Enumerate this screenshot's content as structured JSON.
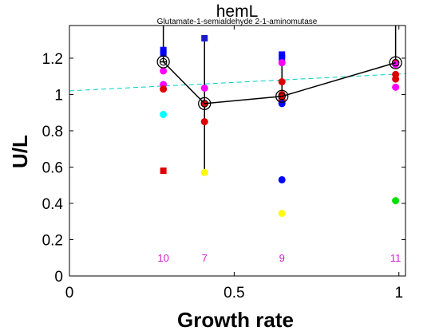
{
  "chart_data": {
    "type": "scatter",
    "title": "hemL",
    "subtitle": "Glutamate-1-semialdehyde 2-1-aminomutase",
    "xlabel": "Growth rate",
    "ylabel": "U/L",
    "xlim": [
      0,
      1.02
    ],
    "ylim": [
      0,
      1.38
    ],
    "x_ticks": [
      0,
      0.5,
      1
    ],
    "x_tick_labels": [
      "0",
      "0.5",
      "1"
    ],
    "y_ticks": [
      0,
      0.2,
      0.4,
      0.6,
      0.8,
      1,
      1.2
    ],
    "y_tick_labels": [
      "0",
      "0.2",
      "0.4",
      "0.6",
      "0.8",
      "1",
      "1.2"
    ],
    "grid": false,
    "colors": {
      "blue": "#0000ff",
      "navy_blue": "#1a1acc",
      "magenta": "#ff00ff",
      "red": "#dd0000",
      "cyan": "#00ffff",
      "yellow": "#ffff00",
      "green": "#00dd00",
      "mean_line": "#000000",
      "trend_line": "#00cccc",
      "count_text": "#d21ed2"
    },
    "mean_series": {
      "x": [
        0.285,
        0.41,
        0.645,
        0.99
      ],
      "y": [
        1.18,
        0.95,
        0.99,
        1.175
      ],
      "err_low": [
        1.18,
        0.57,
        0.99,
        1.175
      ],
      "err_high": [
        1.38,
        1.31,
        1.22,
        1.38
      ]
    },
    "trend_line": {
      "x": [
        0,
        1.02
      ],
      "y": [
        1.02,
        1.115
      ]
    },
    "points": [
      {
        "x": 0.285,
        "y": 1.245,
        "color": "blue",
        "shape": "square"
      },
      {
        "x": 0.285,
        "y": 1.225,
        "color": "blue",
        "shape": "square"
      },
      {
        "x": 0.285,
        "y": 1.13,
        "color": "magenta",
        "shape": "circle"
      },
      {
        "x": 0.285,
        "y": 1.055,
        "color": "magenta",
        "shape": "circle"
      },
      {
        "x": 0.285,
        "y": 1.03,
        "color": "red",
        "shape": "circle"
      },
      {
        "x": 0.285,
        "y": 0.89,
        "color": "cyan",
        "shape": "circle"
      },
      {
        "x": 0.285,
        "y": 0.58,
        "color": "red",
        "shape": "square"
      },
      {
        "x": 0.41,
        "y": 1.31,
        "color": "navy_blue",
        "shape": "square"
      },
      {
        "x": 0.41,
        "y": 1.035,
        "color": "magenta",
        "shape": "circle"
      },
      {
        "x": 0.41,
        "y": 0.95,
        "color": "red",
        "shape": "circle"
      },
      {
        "x": 0.41,
        "y": 0.85,
        "color": "red",
        "shape": "circle"
      },
      {
        "x": 0.41,
        "y": 0.57,
        "color": "yellow",
        "shape": "circle"
      },
      {
        "x": 0.645,
        "y": 1.22,
        "color": "blue",
        "shape": "square"
      },
      {
        "x": 0.645,
        "y": 1.2,
        "color": "blue",
        "shape": "square"
      },
      {
        "x": 0.645,
        "y": 1.175,
        "color": "magenta",
        "shape": "circle"
      },
      {
        "x": 0.645,
        "y": 1.07,
        "color": "red",
        "shape": "circle"
      },
      {
        "x": 0.645,
        "y": 1.0,
        "color": "red",
        "shape": "circle"
      },
      {
        "x": 0.645,
        "y": 0.97,
        "color": "red",
        "shape": "circle"
      },
      {
        "x": 0.645,
        "y": 0.95,
        "color": "blue",
        "shape": "circle"
      },
      {
        "x": 0.645,
        "y": 0.53,
        "color": "blue",
        "shape": "circle"
      },
      {
        "x": 0.645,
        "y": 0.345,
        "color": "yellow",
        "shape": "circle"
      },
      {
        "x": 0.99,
        "y": 1.175,
        "color": "red",
        "shape": "circle"
      },
      {
        "x": 0.99,
        "y": 1.165,
        "color": "magenta",
        "shape": "circle"
      },
      {
        "x": 0.99,
        "y": 1.11,
        "color": "red",
        "shape": "circle"
      },
      {
        "x": 0.99,
        "y": 1.085,
        "color": "red",
        "shape": "circle"
      },
      {
        "x": 0.99,
        "y": 1.04,
        "color": "magenta",
        "shape": "circle"
      },
      {
        "x": 0.99,
        "y": 0.415,
        "color": "green",
        "shape": "circle"
      }
    ],
    "counts": [
      {
        "x": 0.285,
        "y": 0.1,
        "label": "10"
      },
      {
        "x": 0.41,
        "y": 0.1,
        "label": "7"
      },
      {
        "x": 0.645,
        "y": 0.1,
        "label": "9"
      },
      {
        "x": 0.99,
        "y": 0.1,
        "label": "11"
      }
    ]
  }
}
